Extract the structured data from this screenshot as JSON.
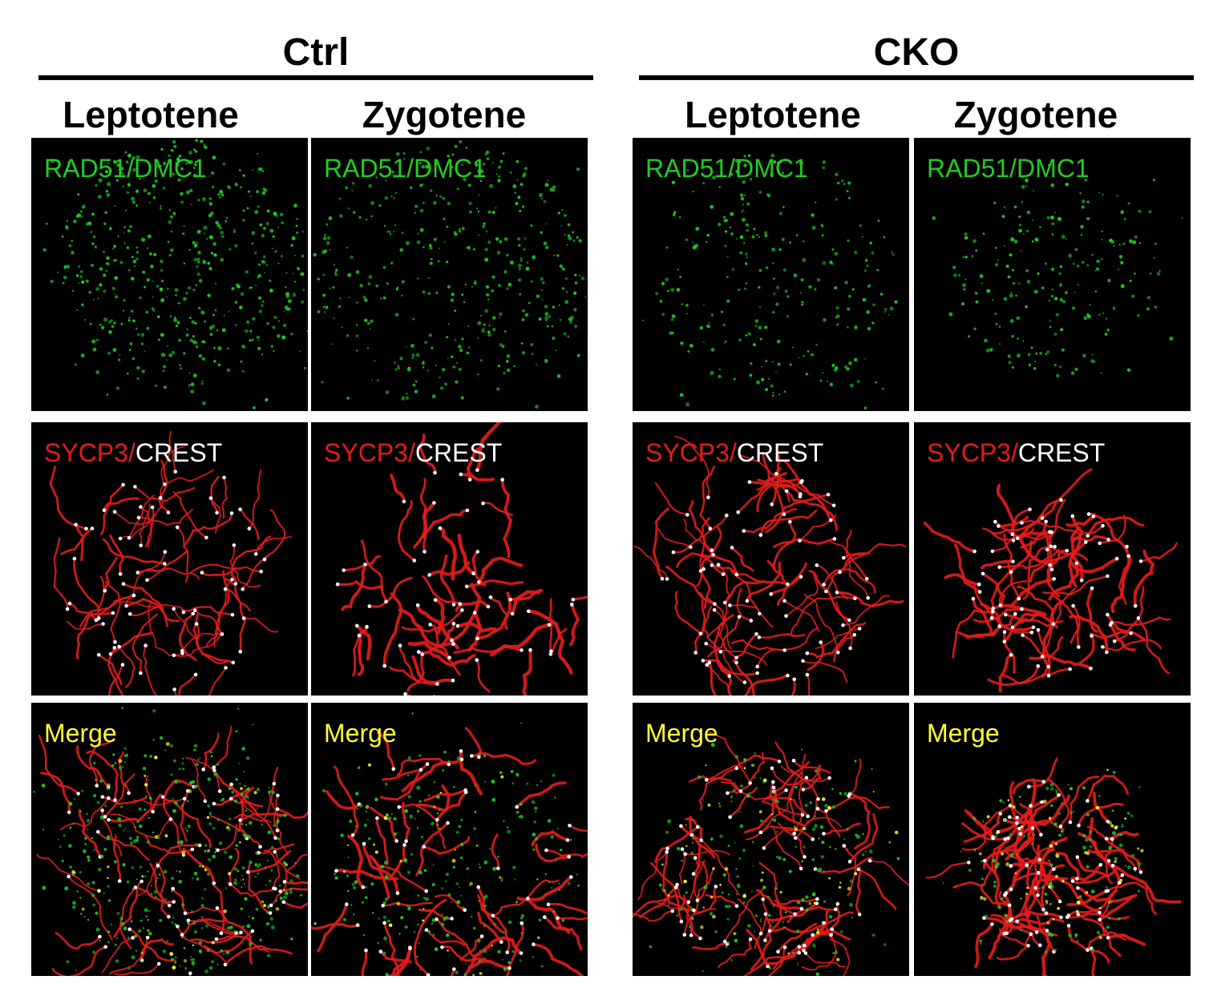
{
  "groups": [
    {
      "title": "Ctrl",
      "stages": [
        "Leptotene",
        "Zygotene"
      ]
    },
    {
      "title": "CKO",
      "stages": [
        "Leptotene",
        "Zygotene"
      ]
    }
  ],
  "channel_labels": {
    "rad51": "RAD51/DMC1",
    "sycp3": "SYCP3/",
    "crest": "CREST",
    "merge": "Merge"
  },
  "colors": {
    "rad51": "#22cc22",
    "sycp3": "#e41b1b",
    "crest": "#ffffff",
    "merge": "#ffff33",
    "panel_background": "#000000"
  }
}
